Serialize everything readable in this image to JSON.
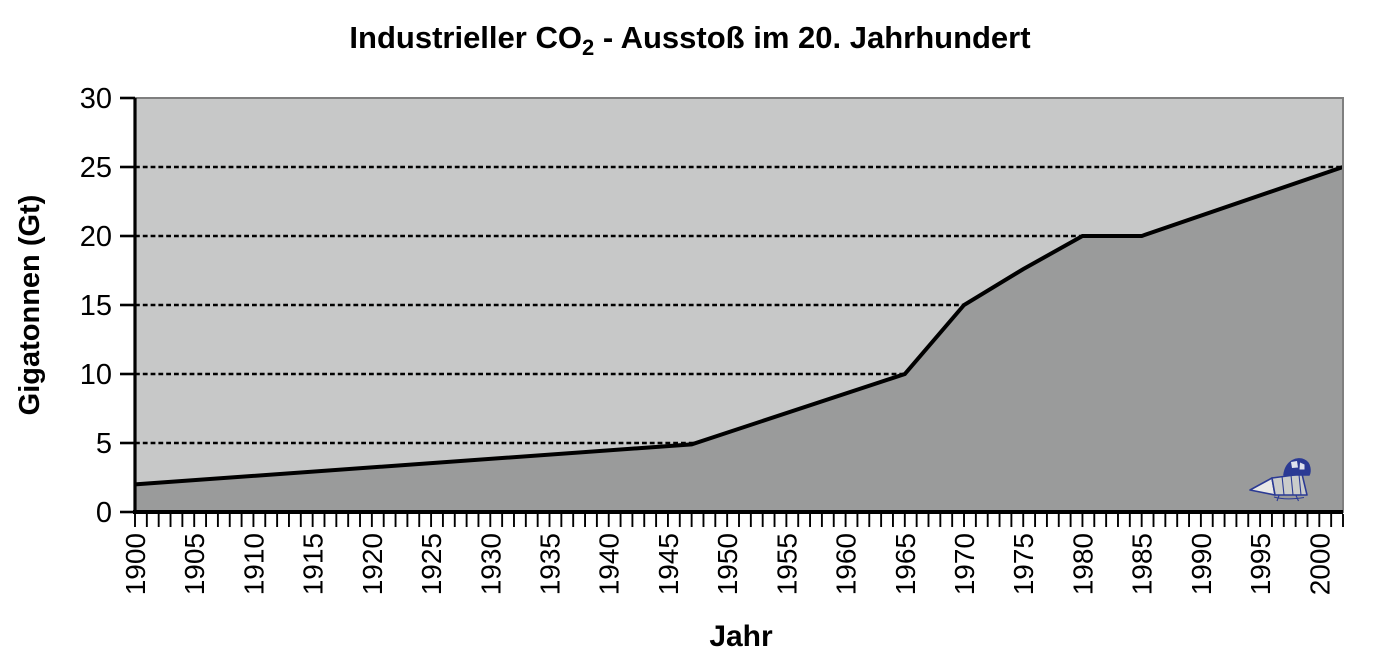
{
  "title": {
    "prefix": "Industrieller CO",
    "subscript": "2",
    "suffix": " - Ausstoß im 20. Jahrhundert"
  },
  "chart_data": {
    "type": "area",
    "title": "Industrieller CO2 - Ausstoß im 20. Jahrhundert",
    "xlabel": "Jahr",
    "ylabel": "Gigatonnen (Gt)",
    "x_range": [
      1900,
      2002
    ],
    "y_range": [
      0,
      30
    ],
    "y_ticks": [
      0,
      5,
      10,
      15,
      20,
      25,
      30
    ],
    "gridline_values": [
      5,
      10,
      15,
      20,
      25
    ],
    "grid_style": "dashed-horizontal",
    "x_tick_labels": [
      "1900",
      "1905",
      "1910",
      "1915",
      "1920",
      "1925",
      "1930",
      "1935",
      "1940",
      "1945",
      "1950",
      "1955",
      "1960",
      "1965",
      "1970",
      "1975",
      "1980",
      "1985",
      "1990",
      "1995",
      "2000"
    ],
    "x_label_step_years": 5,
    "x_minor_tick_step_years": 1,
    "legend": "none",
    "series": [
      {
        "name": "Industrieller CO2-Ausstoß",
        "points": [
          [
            1900,
            2
          ],
          [
            1947,
            4.9
          ],
          [
            1965,
            10
          ],
          [
            1970,
            15
          ],
          [
            1975,
            17.6
          ],
          [
            1980,
            20
          ],
          [
            1985,
            20
          ],
          [
            2002,
            25
          ]
        ]
      }
    ],
    "colors": {
      "plot_background": "#c7c8c8",
      "area_fill": "#9a9b9b",
      "line": "#000000",
      "grid": "#000000",
      "plot_border": "#7f7f7f",
      "text": "#000000",
      "doodle": "#2b3a94"
    }
  }
}
